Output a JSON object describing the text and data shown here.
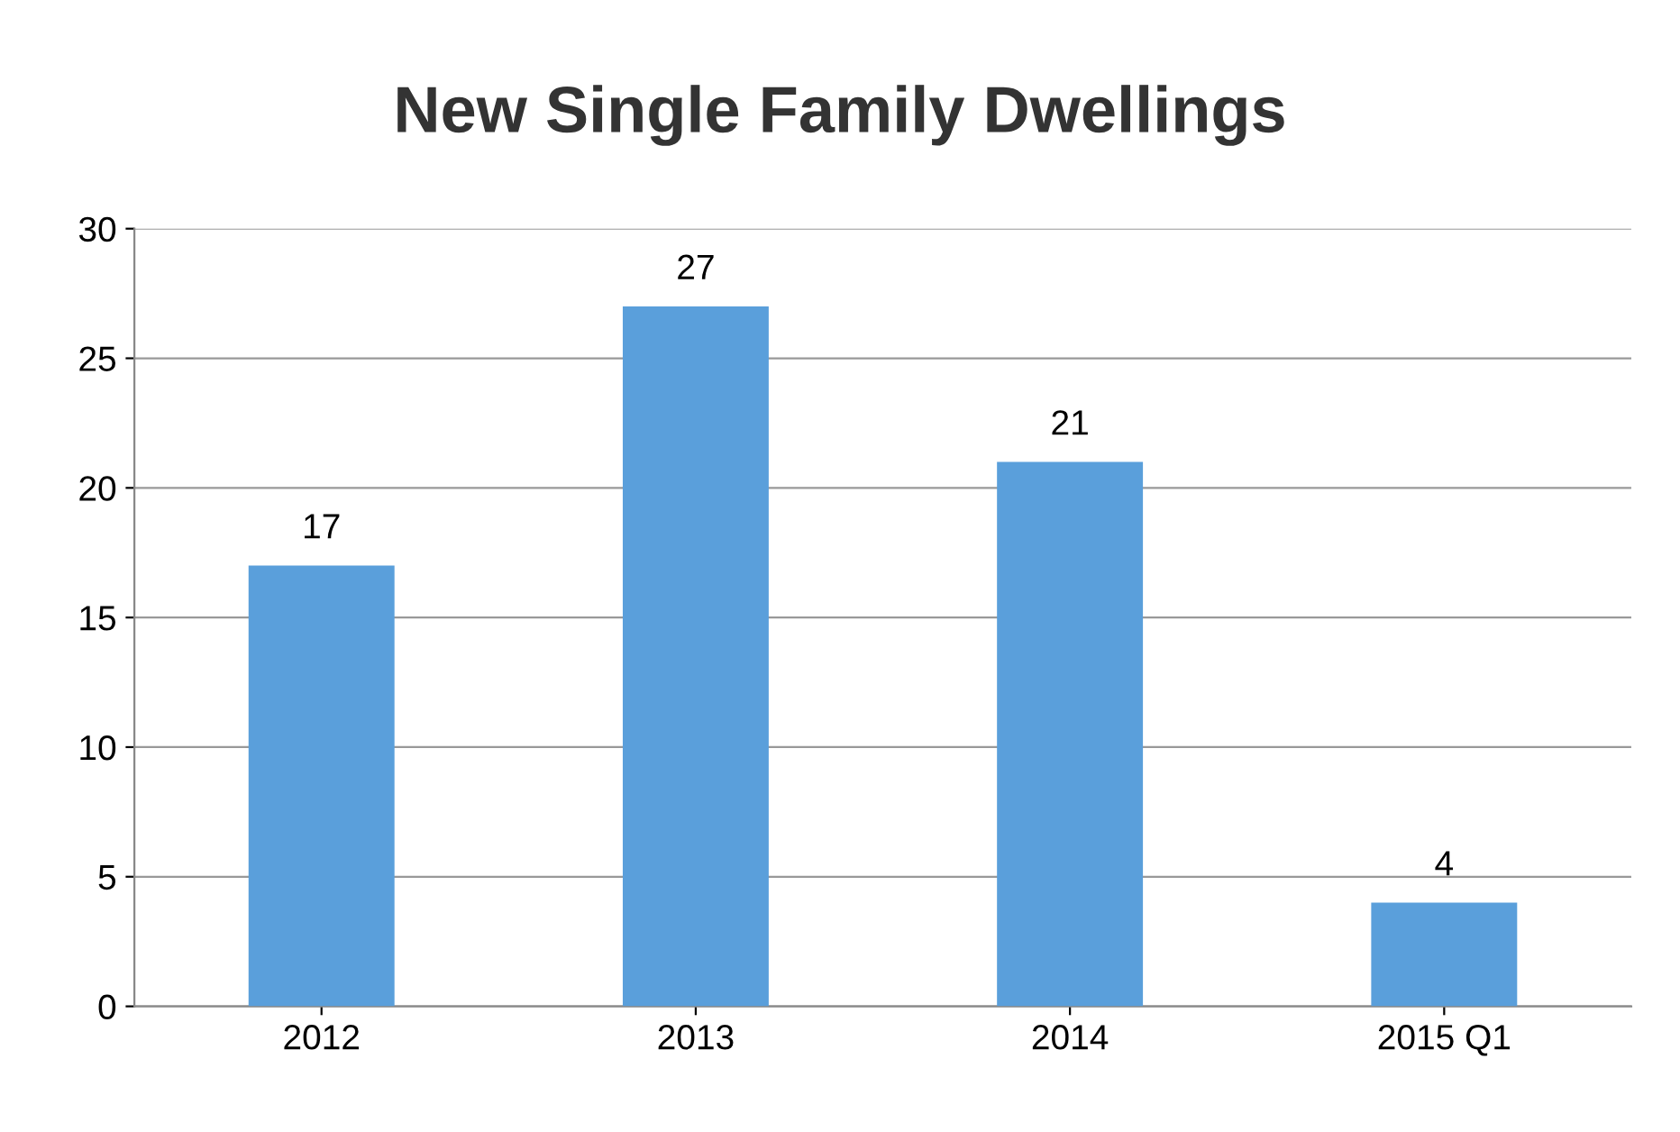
{
  "chart_data": {
    "type": "bar",
    "title": "New Single Family Dwellings",
    "categories": [
      "2012",
      "2013",
      "2014",
      "2015 Q1"
    ],
    "values": [
      17,
      27,
      21,
      4
    ],
    "color": "#5a9fdb",
    "ylim": [
      0,
      30
    ],
    "yticks": [
      0,
      5,
      10,
      15,
      20,
      25,
      30
    ],
    "grid": "y",
    "data_labels": true
  }
}
